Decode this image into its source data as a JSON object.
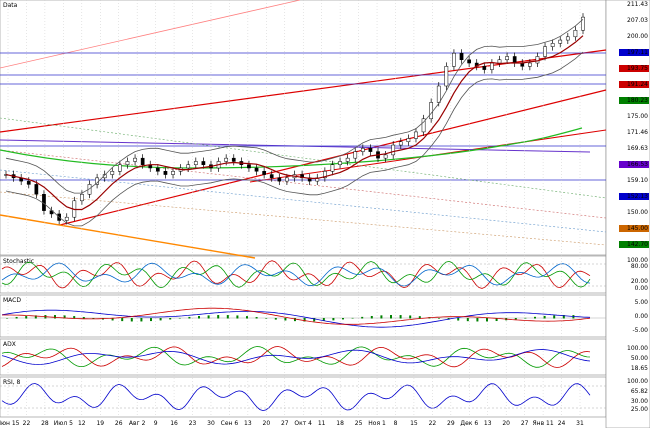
{
  "chart_data": {
    "type": "candlestick",
    "panes": {
      "price": {
        "title": "Data",
        "ylim": [
          140,
          215
        ]
      },
      "stochastic": {
        "title": "Stochastic",
        "ylim": [
          0,
          100
        ]
      },
      "macd": {
        "title": "MACD",
        "ylim": [
          -8,
          8
        ]
      },
      "adx": {
        "title": "ADX",
        "ylim": [
          0,
          100
        ]
      },
      "rsi": {
        "title": "RSI, 8",
        "ylim": [
          0,
          100
        ]
      }
    },
    "x_tick_labels": [
      "Июн 15",
      "22",
      "28",
      "Июл 5",
      "12",
      "19",
      "26",
      "Авг 2",
      "9",
      "16",
      "23",
      "30",
      "Сен 6",
      "13",
      "20",
      "27",
      "Окт 4",
      "11",
      "18",
      "25",
      "Ноя 1",
      "8",
      "15",
      "22",
      "29",
      "Дек 6",
      "13",
      "20",
      "27",
      "Янв 11",
      "24",
      "31"
    ],
    "price_scale_labels": [
      {
        "text": "211.43",
        "color": "#000000"
      },
      {
        "text": "207.03",
        "color": "#000000"
      },
      {
        "text": "200.00",
        "color": "#000000"
      },
      {
        "text": "197.11",
        "color": "#0000cc"
      },
      {
        "text": "193.75",
        "color": "#cc0000"
      },
      {
        "text": "191.24",
        "color": "#cc0000"
      },
      {
        "text": "180.23",
        "color": "#008000"
      },
      {
        "text": "175.00",
        "color": "#000000"
      },
      {
        "text": "171.46",
        "color": "#000000"
      },
      {
        "text": "169.63",
        "color": "#000000"
      },
      {
        "text": "166.53",
        "color": "#6600cc"
      },
      {
        "text": "159.10",
        "color": "#000000"
      },
      {
        "text": "152.13",
        "color": "#0000cc"
      },
      {
        "text": "150.00",
        "color": "#000000"
      },
      {
        "text": "145.00",
        "color": "#cc6600"
      },
      {
        "text": "142.70",
        "color": "#008000"
      }
    ],
    "osc_scale_labels": {
      "stochastic": [
        "100.00",
        "80.00",
        "20.00",
        "0.00"
      ],
      "macd": [
        "5.00",
        "0.00",
        "-5.00"
      ],
      "adx": [
        "100.00",
        "50.00",
        "18.65"
      ],
      "rsi": [
        "100.00",
        "65.82",
        "30.00",
        "25.00"
      ]
    },
    "close_series": [
      163,
      162,
      161,
      160,
      157,
      152,
      151,
      149,
      150,
      155,
      157,
      160,
      162,
      163,
      164,
      166,
      167,
      168,
      166,
      165,
      164,
      163,
      164,
      165,
      166,
      167,
      166,
      165,
      167,
      168,
      167,
      166,
      165,
      164,
      163,
      162,
      161,
      162,
      163,
      162,
      161,
      162,
      164,
      166,
      167,
      168,
      170,
      171,
      170,
      168,
      169,
      172,
      173,
      174,
      176,
      180,
      185,
      190,
      196,
      200,
      198,
      197,
      196,
      195,
      197,
      198,
      199,
      197,
      196,
      197,
      199,
      202,
      203,
      204,
      205,
      207,
      211
    ]
  }
}
